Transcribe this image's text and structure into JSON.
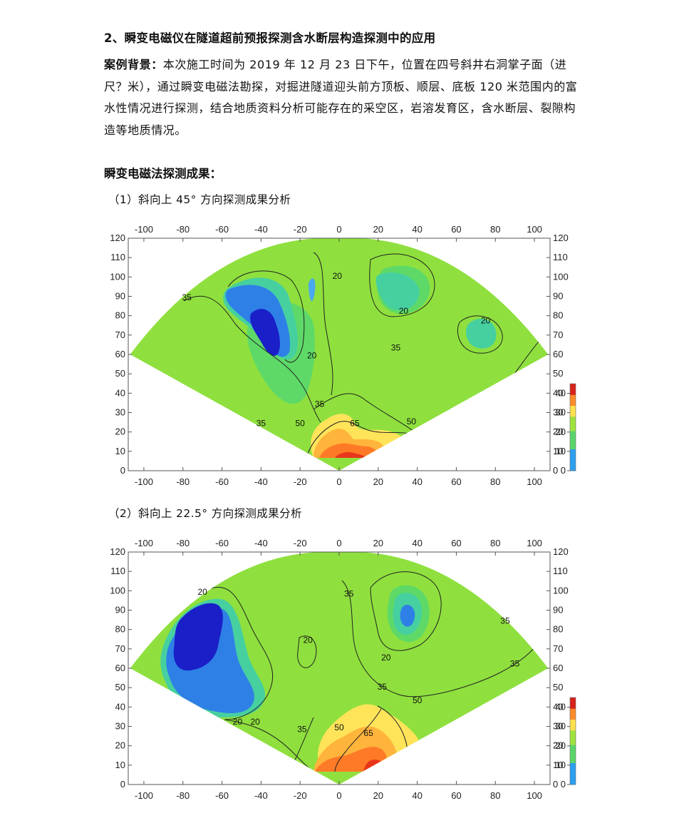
{
  "heading": "2、瞬变电磁仪在隧道超前预报探测含水断层构造探测中的应用",
  "background": {
    "label": "案例背景：",
    "text": "本次施工时间为 2019 年 12 月 23 日下午，位置在四号斜井右洞掌子面（进尺？米），通过瞬变电磁法勘探，对掘进隧道迎头前方顶板、顺层、底板 120 米范围内的富水性情况进行探测，结合地质资料分析可能存在的采空区，岩溶发育区，含水断层、裂隙构造等地质情况。"
  },
  "results_heading": "瞬变电磁法探测成果：",
  "figures": [
    {
      "caption": "（1）斜向上 45° 方向探测成果分析",
      "chart_data": {
        "type": "heatmap",
        "x_ticks": [
          -100,
          -80,
          -60,
          -40,
          -20,
          0,
          20,
          40,
          60,
          80,
          100
        ],
        "y_ticks": [
          0,
          10,
          20,
          30,
          40,
          50,
          60,
          70,
          80,
          90,
          100,
          110,
          120
        ],
        "xlim": [
          -108,
          108
        ],
        "ylim": [
          0,
          120
        ],
        "colorbar_ticks": [
          0,
          10,
          20,
          30,
          40
        ],
        "colorbar_range": [
          0,
          45
        ],
        "contour_labels": [
          {
            "text": "35",
            "x": -78,
            "y": 88
          },
          {
            "text": "20",
            "x": -1,
            "y": 99
          },
          {
            "text": "20",
            "x": -14,
            "y": 58
          },
          {
            "text": "20",
            "x": 33,
            "y": 81
          },
          {
            "text": "20",
            "x": 75,
            "y": 76
          },
          {
            "text": "35",
            "x": 29,
            "y": 62
          },
          {
            "text": "35",
            "x": -10,
            "y": 33
          },
          {
            "text": "35",
            "x": -40,
            "y": 23
          },
          {
            "text": "50",
            "x": -20,
            "y": 23
          },
          {
            "text": "65",
            "x": 8,
            "y": 23
          },
          {
            "text": "50",
            "x": 37,
            "y": 24
          }
        ]
      }
    },
    {
      "caption": "（2）斜向上 22.5° 方向探测成果分析",
      "chart_data": {
        "type": "heatmap",
        "x_ticks": [
          -100,
          -80,
          -60,
          -40,
          -20,
          0,
          20,
          40,
          60,
          80,
          100
        ],
        "y_ticks": [
          0,
          10,
          20,
          30,
          40,
          50,
          60,
          70,
          80,
          90,
          100,
          110,
          120
        ],
        "xlim": [
          -108,
          108
        ],
        "ylim": [
          0,
          120
        ],
        "colorbar_ticks": [
          0,
          10,
          20,
          30,
          40
        ],
        "colorbar_range": [
          0,
          45
        ],
        "contour_labels": [
          {
            "text": "20",
            "x": -70,
            "y": 98
          },
          {
            "text": "35",
            "x": 5,
            "y": 97
          },
          {
            "text": "20",
            "x": -16,
            "y": 73
          },
          {
            "text": "35",
            "x": 85,
            "y": 83
          },
          {
            "text": "20",
            "x": 24,
            "y": 64
          },
          {
            "text": "35",
            "x": 90,
            "y": 61
          },
          {
            "text": "35",
            "x": 22,
            "y": 49
          },
          {
            "text": "50",
            "x": 40,
            "y": 42
          },
          {
            "text": "20",
            "x": -52,
            "y": 31
          },
          {
            "text": "20",
            "x": -43,
            "y": 31
          },
          {
            "text": "35",
            "x": -19,
            "y": 27
          },
          {
            "text": "50",
            "x": 0,
            "y": 28
          },
          {
            "text": "65",
            "x": 15,
            "y": 25
          }
        ]
      }
    }
  ]
}
